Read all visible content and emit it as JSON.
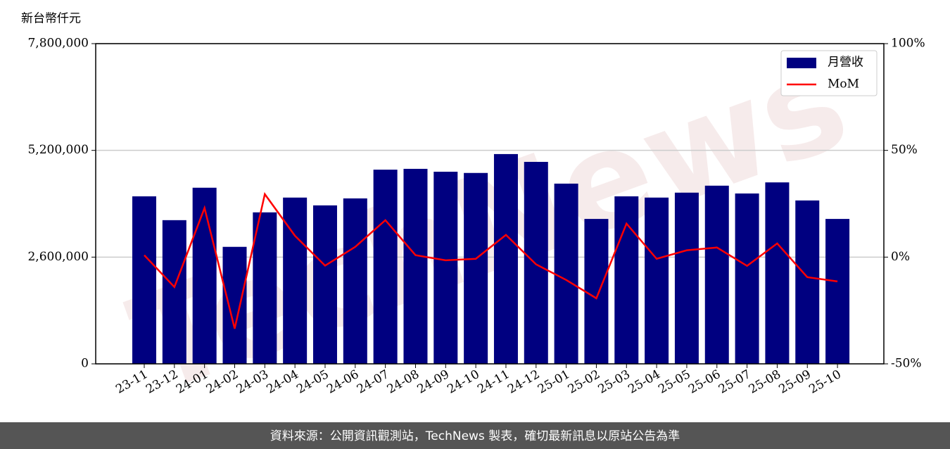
{
  "chart_data": {
    "type": "bar_line",
    "y_label": "新台幣仟元",
    "watermark": "TechNews",
    "footer": "資料來源：公開資訊觀測站，TechNews 製表，確切最新訊息以原站公告為準",
    "categories": [
      "23-11",
      "23-12",
      "24-01",
      "24-02",
      "24-03",
      "24-04",
      "24-05",
      "24-06",
      "24-07",
      "24-08",
      "24-09",
      "24-10",
      "24-11",
      "24-12",
      "25-01",
      "25-02",
      "25-03",
      "25-04",
      "25-05",
      "25-06",
      "25-07",
      "25-08",
      "25-09",
      "25-10"
    ],
    "series": [
      {
        "name": "月營收",
        "type": "bar",
        "color": "#000080",
        "values": [
          4080000,
          3500000,
          4290000,
          2850000,
          3690000,
          4050000,
          3860000,
          4030000,
          4730000,
          4750000,
          4680000,
          4650000,
          5110000,
          4920000,
          4390000,
          3530000,
          4080000,
          4050000,
          4170000,
          4340000,
          4150000,
          4420000,
          3980000,
          3530000
        ]
      },
      {
        "name": "MoM",
        "type": "line",
        "axis": "y2",
        "color": "#ff0000",
        "values": [
          0.9,
          -14,
          23,
          -33.5,
          29.5,
          10,
          -4,
          4.8,
          17.3,
          0.9,
          -1.5,
          -0.8,
          10.4,
          -3.4,
          -10.7,
          -19.3,
          15.7,
          -0.8,
          3.2,
          4.5,
          -4.1,
          6.4,
          -9.4,
          -11.4
        ]
      }
    ],
    "ylim": [
      0,
      7800000
    ],
    "yticks": [
      0,
      {
        "value": 2600000,
        "label": "2,600,000"
      },
      {
        "value": 5200000,
        "label": "5,200,000"
      },
      {
        "value": 7800000,
        "label": "7,800,000"
      }
    ],
    "y2lim": [
      -50,
      100
    ],
    "y2ticks": [
      {
        "value": -50,
        "label": "-50%"
      },
      {
        "value": 0,
        "label": "0%"
      },
      {
        "value": 50,
        "label": "50%"
      },
      {
        "value": 100,
        "label": "100%"
      }
    ],
    "grid": true,
    "legend": "upper right"
  }
}
